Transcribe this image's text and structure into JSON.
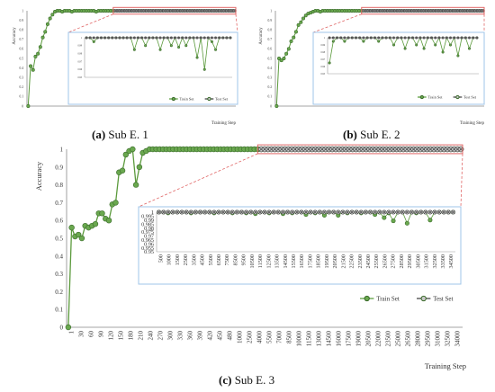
{
  "panels": [
    {
      "id": "a",
      "caption_letter": "(a)",
      "caption_text": "Sub E. 1",
      "chart_data": {
        "type": "line",
        "ylabel": "Accuracy",
        "xlabel": "Training Step",
        "ylim": [
          0,
          1
        ],
        "yticks": [
          "0",
          "0.1",
          "0.2",
          "0.3",
          "0.4",
          "0.5",
          "0.6",
          "0.7",
          "0.8",
          "0.9",
          "1"
        ],
        "series": [
          {
            "name": "Train Set",
            "color": "#6aa84f",
            "marker": "circle"
          },
          {
            "name": "Test Set",
            "color": "#555555",
            "marker": "circle-x"
          }
        ],
        "train_values": [
          0,
          0.42,
          0.38,
          0.52,
          0.55,
          0.62,
          0.72,
          0.78,
          0.86,
          0.92,
          0.96,
          0.99,
          1,
          1,
          0.99,
          1,
          1,
          1,
          0.99,
          1,
          1,
          1,
          1,
          1,
          1,
          1,
          1,
          1,
          0.99,
          1,
          1,
          1,
          1,
          1,
          1,
          1
        ],
        "test_values": [
          1,
          1,
          1,
          1,
          1,
          1,
          1,
          1,
          1,
          1,
          1,
          1,
          1,
          1,
          1,
          1,
          1,
          1,
          1,
          1,
          1,
          1,
          1,
          1,
          1,
          1,
          1,
          1,
          1,
          1,
          1,
          1,
          1,
          1,
          1,
          1,
          1,
          1,
          1,
          1,
          1,
          1,
          1,
          1,
          1,
          1,
          1,
          1,
          1,
          1
        ],
        "inset": {
          "ylim": [
            0.95,
            1
          ],
          "yticks": [
            "1",
            "0.995",
            "0.99",
            "0.985",
            "0.98",
            "0.975",
            "0.97",
            "0.965",
            "0.96",
            "0.955",
            "0.95"
          ],
          "train_values": [
            1,
            1,
            0.995,
            1,
            1,
            1,
            1,
            1,
            1,
            1,
            1,
            1,
            1,
            0.985,
            1,
            1,
            0.99,
            1,
            1,
            1,
            0.985,
            1,
            1,
            0.99,
            1,
            0.988,
            1,
            0.99,
            1,
            1,
            0.975,
            1,
            0.96,
            1,
            0.995,
            0.985,
            1,
            1,
            1,
            1
          ],
          "test_values": [
            1,
            1,
            1,
            1,
            1,
            1,
            1,
            1,
            1,
            1,
            1,
            1,
            1,
            1,
            1,
            1,
            1,
            1,
            1,
            1,
            1,
            1,
            1,
            1,
            1,
            1,
            1,
            1,
            1,
            1,
            1,
            1,
            1,
            1,
            1,
            1,
            1,
            1,
            1,
            1
          ]
        }
      }
    },
    {
      "id": "b",
      "caption_letter": "(b)",
      "caption_text": "Sub E. 2",
      "chart_data": {
        "type": "line",
        "ylabel": "Accuracy",
        "xlabel": "Training Step",
        "ylim": [
          0,
          1
        ],
        "yticks": [
          "0",
          "0.1",
          "0.2",
          "0.3",
          "0.4",
          "0.5",
          "0.6",
          "0.7",
          "0.8",
          "0.9",
          "1"
        ],
        "series": [
          {
            "name": "Train Set",
            "color": "#6aa84f",
            "marker": "circle"
          },
          {
            "name": "Test Set",
            "color": "#555555",
            "marker": "circle-x"
          }
        ],
        "train_values": [
          0,
          0.5,
          0.48,
          0.5,
          0.55,
          0.6,
          0.68,
          0.72,
          0.78,
          0.85,
          0.88,
          0.92,
          0.95,
          0.97,
          0.98,
          0.99,
          1,
          1,
          0.99,
          1,
          1,
          1,
          1,
          1,
          1,
          1,
          1,
          1,
          1,
          1,
          1,
          1,
          1,
          1,
          1,
          1
        ],
        "test_values": [
          1,
          1,
          1,
          1,
          1,
          1,
          1,
          1,
          1,
          1,
          1,
          1,
          1,
          1,
          1,
          1,
          1,
          1,
          1,
          1,
          1,
          1,
          1,
          1,
          1,
          1,
          1,
          1,
          1,
          1,
          1,
          1,
          1,
          1,
          1,
          1,
          1,
          1,
          1,
          1,
          1,
          1,
          1,
          1,
          1,
          1,
          1,
          1,
          1,
          1
        ],
        "inset": {
          "ylim": [
            0.95,
            1
          ],
          "yticks": [
            "1",
            "0.995",
            "0.99",
            "0.985",
            "0.98",
            "0.975",
            "0.97",
            "0.965",
            "0.96",
            "0.955",
            "0.95"
          ],
          "train_values": [
            0.965,
            0.995,
            1,
            1,
            0.995,
            1,
            1,
            1,
            1,
            0.995,
            1,
            1,
            1,
            0.995,
            1,
            1,
            1,
            0.99,
            1,
            1,
            0.985,
            1,
            1,
            0.99,
            1,
            0.985,
            1,
            1,
            0.99,
            1,
            0.98,
            1,
            0.99,
            1,
            0.975,
            1,
            1,
            0.985,
            1,
            1
          ],
          "test_values": [
            1,
            1,
            1,
            1,
            1,
            1,
            1,
            1,
            1,
            1,
            1,
            1,
            1,
            1,
            1,
            1,
            1,
            1,
            1,
            1,
            1,
            1,
            1,
            1,
            1,
            1,
            1,
            1,
            1,
            1,
            1,
            1,
            1,
            1,
            1,
            1,
            1,
            1,
            1,
            1
          ]
        }
      }
    },
    {
      "id": "c",
      "caption_letter": "(c)",
      "caption_text": "Sub E. 3",
      "chart_data": {
        "type": "line",
        "ylabel": "Accuracy",
        "xlabel": "Training  Step",
        "ylim": [
          0,
          1
        ],
        "yticks": [
          "0",
          "0.1",
          "0.2",
          "0.3",
          "0.4",
          "0.5",
          "0.6",
          "0.7",
          "0.8",
          "0.9",
          "1"
        ],
        "xticks": [
          "1",
          "30",
          "60",
          "90",
          "120",
          "150",
          "180",
          "210",
          "240",
          "270",
          "300",
          "330",
          "360",
          "390",
          "420",
          "450",
          "480",
          "1000",
          "2500",
          "4000",
          "5500",
          "7000",
          "8500",
          "10000",
          "11500",
          "13000",
          "14500",
          "16000",
          "17500",
          "19000",
          "20500",
          "22000",
          "23500",
          "25000",
          "26500",
          "28000",
          "29500",
          "31000",
          "32500",
          "34000"
        ],
        "series": [
          {
            "name": "Train Set",
            "color": "#6aa84f",
            "marker": "circle"
          },
          {
            "name": "Test Set",
            "color": "#555555",
            "marker": "circle-x"
          }
        ],
        "train_values": [
          0,
          0.56,
          0.51,
          0.52,
          0.5,
          0.57,
          0.56,
          0.57,
          0.58,
          0.64,
          0.64,
          0.61,
          0.6,
          0.69,
          0.7,
          0.87,
          0.88,
          0.97,
          0.99,
          1,
          0.8,
          0.9,
          0.98,
          0.99,
          1,
          1,
          1,
          1,
          1,
          1,
          1,
          1,
          1,
          1,
          1,
          1,
          1,
          1,
          1,
          1,
          1,
          1,
          1,
          1,
          1,
          1,
          1,
          1,
          1,
          1,
          1,
          1,
          1,
          1,
          1,
          1,
          1
        ],
        "test_values": [
          1,
          1,
          1,
          1,
          1,
          1,
          1,
          1,
          1,
          1,
          1,
          1,
          1,
          1,
          1,
          1,
          1,
          1,
          1,
          1,
          1,
          1,
          1,
          1,
          1,
          1,
          1,
          1,
          1,
          1,
          1,
          1,
          1,
          1,
          1,
          1,
          1,
          1,
          1,
          1,
          1,
          1,
          1,
          1,
          1,
          1,
          1,
          1,
          1,
          1,
          1,
          1,
          1,
          1,
          1,
          1,
          1,
          1,
          1,
          1
        ],
        "inset": {
          "ylim": [
            0.95,
            1
          ],
          "yticks": [
            "1",
            "0.995",
            "0.99",
            "0.985",
            "0.98",
            "0.975",
            "0.97",
            "0.965",
            "0.96",
            "0.955",
            "0.95"
          ],
          "xticks": [
            "500",
            "1000",
            "1500",
            "2500",
            "3500",
            "4500",
            "5500",
            "6500",
            "7500",
            "8500",
            "9500",
            "10500",
            "11500",
            "12500",
            "13500",
            "14500",
            "15500",
            "16500",
            "17500",
            "18500",
            "19500",
            "20500",
            "21500",
            "22500",
            "23500",
            "24500",
            "25500",
            "26500",
            "27500",
            "28500",
            "29500",
            "30500",
            "31500",
            "32500",
            "33500",
            "34500"
          ],
          "train_values": [
            1,
            1,
            0.999,
            1,
            1,
            1,
            1,
            0.999,
            1,
            1,
            1,
            1,
            0.999,
            1,
            1,
            1,
            0.999,
            1,
            1,
            0.999,
            1,
            0.998,
            1,
            1,
            0.999,
            1,
            1,
            0.998,
            1,
            0.999,
            1,
            1,
            0.997,
            1,
            0.999,
            1,
            0.996,
            1,
            1,
            0.996,
            1,
            0.999,
            1,
            1,
            0.999,
            1,
            1,
            0.997,
            1,
            0.993,
            0.999,
            0.989,
            1,
            1,
            0.986,
            1,
            0.999,
            1,
            1,
            0.99,
            1,
            1,
            1,
            1,
            1
          ],
          "test_values": [
            1,
            1,
            1,
            1,
            1,
            1,
            1,
            1,
            1,
            1,
            1,
            1,
            1,
            1,
            1,
            1,
            1,
            1,
            1,
            1,
            1,
            1,
            1,
            1,
            1,
            1,
            1,
            1,
            1,
            1,
            1,
            1,
            1,
            1,
            1,
            1,
            1,
            1,
            1,
            1,
            1,
            1,
            1,
            1,
            1,
            1,
            1,
            1,
            1,
            1,
            1,
            1,
            1,
            1,
            1,
            1,
            1,
            1,
            1,
            1,
            1,
            1,
            1,
            1,
            1
          ]
        }
      }
    }
  ]
}
